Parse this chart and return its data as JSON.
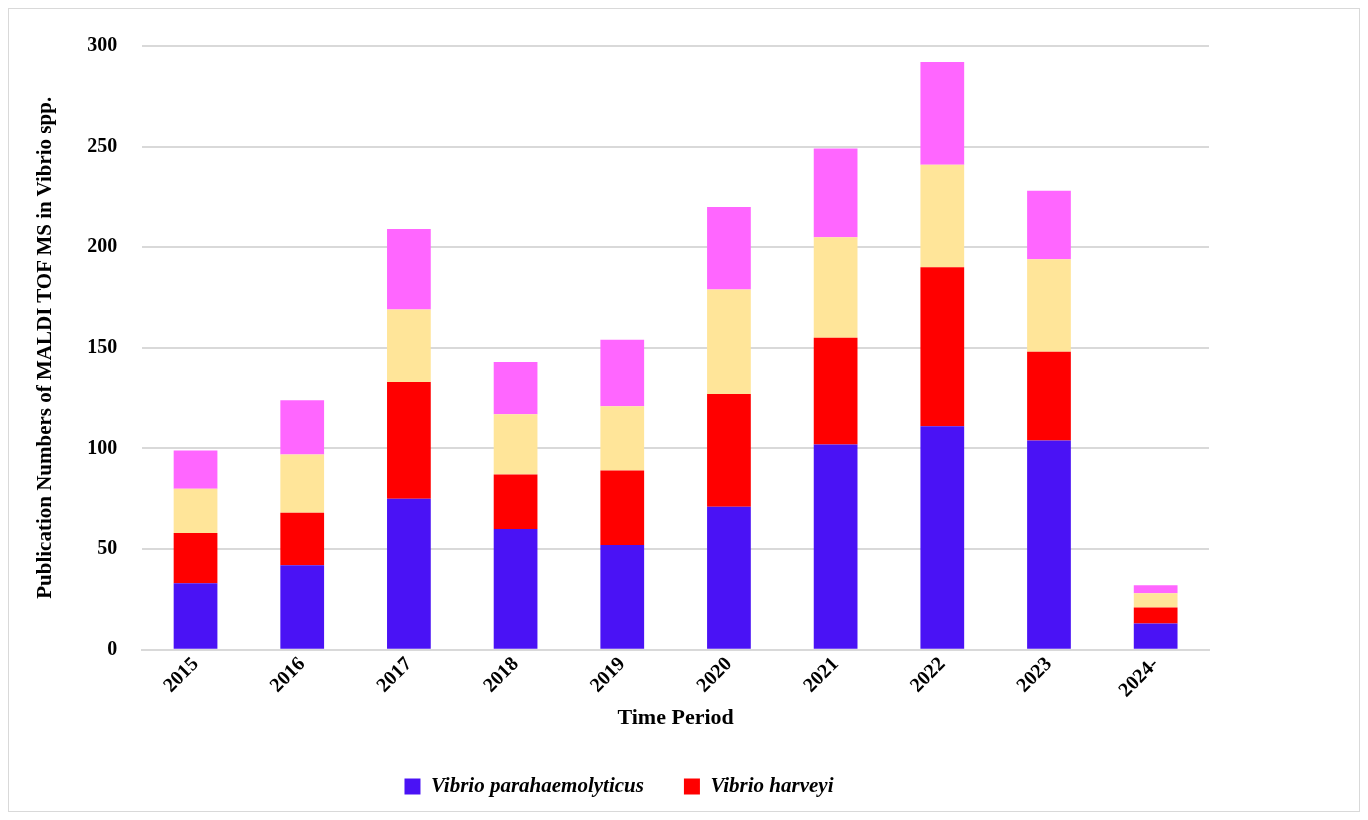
{
  "chart_data": {
    "type": "bar",
    "stacked": true,
    "ylabel": "Publication Numbers of MALDI TOF MS in Vibrio spp.",
    "xlabel": "Time Period",
    "categories": [
      "2015",
      "2016",
      "2017",
      "2018",
      "2019",
      "2020",
      "2021",
      "2022",
      "2023",
      "2024-"
    ],
    "series": [
      {
        "name": "Vibrio parahaemolyticus",
        "color": "#4a12f5",
        "values": [
          33,
          42,
          75,
          60,
          52,
          71,
          102,
          111,
          104,
          13
        ]
      },
      {
        "name": "Vibrio harveyi",
        "color": "#ff0000",
        "values": [
          25,
          26,
          58,
          27,
          37,
          56,
          53,
          79,
          44,
          8
        ]
      },
      {
        "color": "#ffe599",
        "values": [
          22,
          29,
          36,
          30,
          32,
          52,
          50,
          51,
          46,
          7
        ]
      },
      {
        "color": "#ff66ff",
        "values": [
          19,
          27,
          40,
          26,
          33,
          41,
          44,
          51,
          34,
          4
        ]
      }
    ],
    "ylim": [
      0,
      300
    ],
    "yticks": [
      0,
      50,
      100,
      150,
      200,
      250,
      300
    ],
    "grid": "y",
    "legend": "bottom"
  }
}
